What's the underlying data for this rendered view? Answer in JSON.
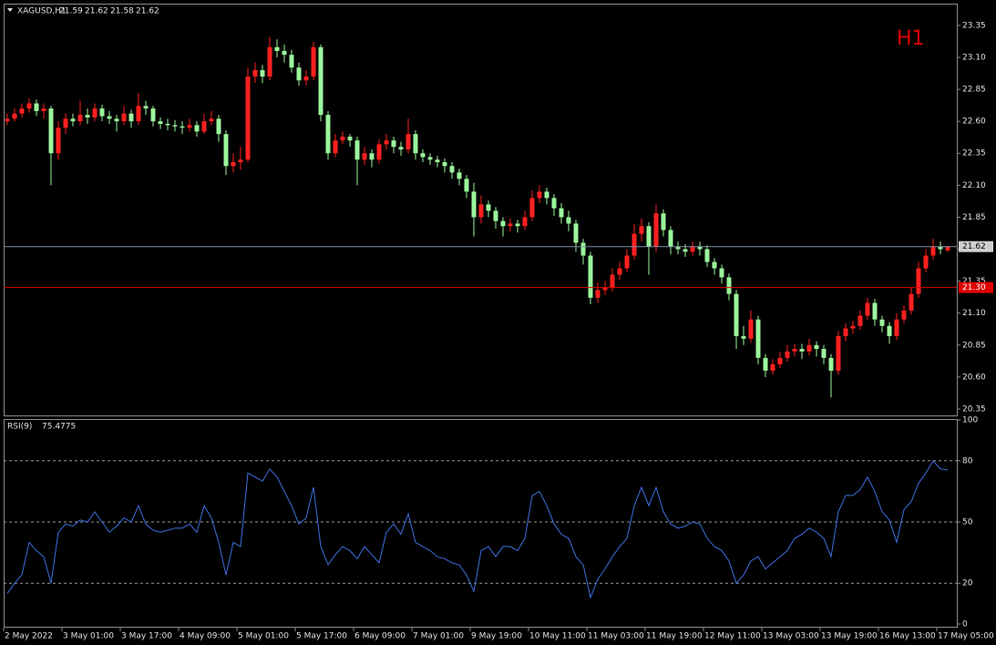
{
  "chart_data": [
    {
      "type": "candlestick",
      "title": "XAGUSD,H1",
      "timeframe_label": "H1",
      "up_color": "#ff2020",
      "down_color": "#9cf59c",
      "ylim": [
        20.3,
        23.52
      ],
      "yticks": [
        {
          "value": 20.35,
          "label": "20.35"
        },
        {
          "value": 20.6,
          "label": "20.60"
        },
        {
          "value": 20.85,
          "label": "20.85"
        },
        {
          "value": 21.1,
          "label": "21.10"
        },
        {
          "value": 21.35,
          "label": "21.35"
        },
        {
          "value": 21.6,
          "label": "21.60"
        },
        {
          "value": 21.85,
          "label": "21.85"
        },
        {
          "value": 22.1,
          "label": "22.10"
        },
        {
          "value": 22.35,
          "label": "22.35"
        },
        {
          "value": 22.6,
          "label": "22.60"
        },
        {
          "value": 22.85,
          "label": "22.85"
        },
        {
          "value": 23.1,
          "label": "23.10"
        },
        {
          "value": 23.35,
          "label": "23.35"
        }
      ],
      "hlines": [
        {
          "value": 21.62,
          "color": "#7f8fa6"
        },
        {
          "value": 21.3,
          "label": "21.30",
          "color": "#e00000"
        }
      ],
      "categories": [
        "2 May 2022",
        null,
        null,
        null,
        null,
        null,
        null,
        null,
        "3 May 01:00",
        null,
        null,
        null,
        null,
        null,
        null,
        null,
        "3 May 17:00",
        null,
        null,
        null,
        null,
        null,
        null,
        null,
        "4 May 09:00",
        null,
        null,
        null,
        null,
        null,
        null,
        null,
        "5 May 01:00",
        null,
        null,
        null,
        null,
        null,
        null,
        null,
        "5 May 17:00",
        null,
        null,
        null,
        null,
        null,
        null,
        null,
        "6 May 09:00",
        null,
        null,
        null,
        null,
        null,
        null,
        null,
        "7 May 01:00",
        null,
        null,
        null,
        null,
        null,
        null,
        null,
        "9 May 19:00",
        null,
        null,
        null,
        null,
        null,
        null,
        null,
        "10 May 11:00",
        null,
        null,
        null,
        null,
        null,
        null,
        null,
        "11 May 03:00",
        null,
        null,
        null,
        null,
        null,
        null,
        null,
        "11 May 19:00",
        null,
        null,
        null,
        null,
        null,
        null,
        null,
        "12 May 11:00",
        null,
        null,
        null,
        null,
        null,
        null,
        null,
        "13 May 03:00",
        null,
        null,
        null,
        null,
        null,
        null,
        null,
        "13 May 19:00",
        null,
        null,
        null,
        null,
        null,
        null,
        null,
        "16 May 13:00",
        null,
        null,
        null,
        null,
        null,
        null,
        null,
        "17 May 05:00",
        null
      ],
      "ohlc": [
        [
          22.6,
          22.66,
          22.57,
          22.62
        ],
        [
          22.62,
          22.7,
          22.6,
          22.66
        ],
        [
          22.66,
          22.74,
          22.63,
          22.7
        ],
        [
          22.7,
          22.78,
          22.67,
          22.74
        ],
        [
          22.74,
          22.77,
          22.64,
          22.68
        ],
        [
          22.68,
          22.74,
          22.62,
          22.7
        ],
        [
          22.7,
          22.72,
          22.1,
          22.35
        ],
        [
          22.35,
          22.6,
          22.3,
          22.55
        ],
        [
          22.55,
          22.66,
          22.5,
          22.62
        ],
        [
          22.62,
          22.66,
          22.56,
          22.6
        ],
        [
          22.6,
          22.76,
          22.57,
          22.65
        ],
        [
          22.65,
          22.7,
          22.58,
          22.63
        ],
        [
          22.63,
          22.74,
          22.6,
          22.7
        ],
        [
          22.7,
          22.73,
          22.6,
          22.64
        ],
        [
          22.64,
          22.68,
          22.58,
          22.62
        ],
        [
          22.62,
          22.65,
          22.52,
          22.6
        ],
        [
          22.6,
          22.72,
          22.57,
          22.66
        ],
        [
          22.66,
          22.69,
          22.55,
          22.6
        ],
        [
          22.6,
          22.82,
          22.57,
          22.72
        ],
        [
          22.72,
          22.76,
          22.65,
          22.7
        ],
        [
          22.7,
          22.72,
          22.56,
          22.6
        ],
        [
          22.6,
          22.63,
          22.54,
          22.58
        ],
        [
          22.58,
          22.62,
          22.53,
          22.57
        ],
        [
          22.57,
          22.61,
          22.52,
          22.56
        ],
        [
          22.56,
          22.6,
          22.5,
          22.55
        ],
        [
          22.55,
          22.62,
          22.52,
          22.57
        ],
        [
          22.57,
          22.6,
          22.48,
          22.52
        ],
        [
          22.52,
          22.66,
          22.5,
          22.6
        ],
        [
          22.6,
          22.68,
          22.57,
          22.62
        ],
        [
          22.62,
          22.65,
          22.44,
          22.5
        ],
        [
          22.5,
          22.53,
          22.18,
          22.25
        ],
        [
          22.25,
          22.35,
          22.2,
          22.28
        ],
        [
          22.28,
          22.4,
          22.22,
          22.3
        ],
        [
          22.3,
          23.02,
          22.28,
          22.95
        ],
        [
          22.95,
          23.06,
          22.9,
          23.0
        ],
        [
          23.0,
          23.04,
          22.9,
          22.95
        ],
        [
          22.95,
          23.26,
          22.92,
          23.18
        ],
        [
          23.18,
          23.24,
          23.1,
          23.15
        ],
        [
          23.15,
          23.2,
          23.06,
          23.12
        ],
        [
          23.12,
          23.16,
          22.98,
          23.02
        ],
        [
          23.02,
          23.06,
          22.88,
          22.92
        ],
        [
          22.92,
          23.0,
          22.88,
          22.95
        ],
        [
          22.95,
          23.22,
          22.92,
          23.18
        ],
        [
          23.18,
          23.2,
          22.6,
          22.65
        ],
        [
          22.65,
          22.68,
          22.3,
          22.35
        ],
        [
          22.35,
          22.5,
          22.32,
          22.45
        ],
        [
          22.45,
          22.52,
          22.42,
          22.48
        ],
        [
          22.48,
          22.5,
          22.4,
          22.45
        ],
        [
          22.45,
          22.48,
          22.1,
          22.3
        ],
        [
          22.3,
          22.4,
          22.26,
          22.35
        ],
        [
          22.35,
          22.38,
          22.24,
          22.3
        ],
        [
          22.3,
          22.46,
          22.27,
          22.42
        ],
        [
          22.42,
          22.5,
          22.38,
          22.45
        ],
        [
          22.45,
          22.48,
          22.35,
          22.4
        ],
        [
          22.4,
          22.44,
          22.33,
          22.38
        ],
        [
          22.38,
          22.62,
          22.35,
          22.5
        ],
        [
          22.5,
          22.53,
          22.3,
          22.35
        ],
        [
          22.35,
          22.38,
          22.28,
          22.32
        ],
        [
          22.32,
          22.35,
          22.26,
          22.3
        ],
        [
          22.3,
          22.33,
          22.24,
          22.28
        ],
        [
          22.28,
          22.31,
          22.2,
          22.25
        ],
        [
          22.25,
          22.28,
          22.15,
          22.2
        ],
        [
          22.2,
          22.23,
          22.1,
          22.15
        ],
        [
          22.15,
          22.18,
          22.0,
          22.05
        ],
        [
          22.05,
          22.12,
          21.7,
          21.85
        ],
        [
          21.85,
          22.02,
          21.8,
          21.95
        ],
        [
          21.95,
          21.98,
          21.85,
          21.9
        ],
        [
          21.9,
          21.93,
          21.76,
          21.82
        ],
        [
          21.82,
          21.85,
          21.7,
          21.78
        ],
        [
          21.78,
          21.84,
          21.74,
          21.8
        ],
        [
          21.8,
          21.83,
          21.73,
          21.78
        ],
        [
          21.78,
          21.9,
          21.75,
          21.85
        ],
        [
          21.85,
          22.06,
          21.82,
          22.0
        ],
        [
          22.0,
          22.1,
          21.96,
          22.05
        ],
        [
          22.05,
          22.08,
          21.95,
          22.0
        ],
        [
          22.0,
          22.03,
          21.86,
          21.92
        ],
        [
          21.92,
          21.96,
          21.8,
          21.85
        ],
        [
          21.85,
          21.9,
          21.74,
          21.8
        ],
        [
          21.8,
          21.83,
          21.58,
          21.65
        ],
        [
          21.65,
          21.68,
          21.48,
          21.55
        ],
        [
          21.55,
          21.58,
          21.17,
          21.22
        ],
        [
          21.22,
          21.34,
          21.18,
          21.28
        ],
        [
          21.28,
          21.35,
          21.24,
          21.3
        ],
        [
          21.3,
          21.45,
          21.27,
          21.4
        ],
        [
          21.4,
          21.5,
          21.36,
          21.45
        ],
        [
          21.45,
          21.6,
          21.42,
          21.55
        ],
        [
          21.55,
          21.8,
          21.52,
          21.72
        ],
        [
          21.72,
          21.84,
          21.66,
          21.78
        ],
        [
          21.78,
          21.81,
          21.4,
          21.62
        ],
        [
          21.62,
          21.95,
          21.58,
          21.88
        ],
        [
          21.88,
          21.91,
          21.7,
          21.75
        ],
        [
          21.75,
          21.78,
          21.56,
          21.62
        ],
        [
          21.62,
          21.66,
          21.56,
          21.6
        ],
        [
          21.6,
          21.64,
          21.54,
          21.58
        ],
        [
          21.58,
          21.66,
          21.55,
          21.62
        ],
        [
          21.62,
          21.66,
          21.55,
          21.6
        ],
        [
          21.6,
          21.63,
          21.46,
          21.5
        ],
        [
          21.5,
          21.53,
          21.4,
          21.45
        ],
        [
          21.45,
          21.48,
          21.33,
          21.38
        ],
        [
          21.38,
          21.41,
          21.2,
          21.25
        ],
        [
          21.25,
          21.28,
          20.82,
          20.92
        ],
        [
          20.92,
          21.0,
          20.85,
          20.9
        ],
        [
          20.9,
          21.12,
          20.87,
          21.05
        ],
        [
          21.05,
          21.08,
          20.7,
          20.75
        ],
        [
          20.75,
          20.78,
          20.6,
          20.65
        ],
        [
          20.65,
          20.74,
          20.62,
          20.7
        ],
        [
          20.7,
          20.8,
          20.67,
          20.75
        ],
        [
          20.75,
          20.85,
          20.72,
          20.8
        ],
        [
          20.8,
          20.86,
          20.76,
          20.82
        ],
        [
          20.82,
          20.86,
          20.74,
          20.8
        ],
        [
          20.8,
          20.9,
          20.77,
          20.85
        ],
        [
          20.85,
          20.88,
          20.76,
          20.82
        ],
        [
          20.82,
          20.85,
          20.7,
          20.75
        ],
        [
          20.75,
          20.78,
          20.44,
          20.65
        ],
        [
          20.65,
          20.96,
          20.62,
          20.92
        ],
        [
          20.92,
          21.02,
          20.88,
          20.98
        ],
        [
          20.98,
          21.04,
          20.94,
          21.0
        ],
        [
          21.0,
          21.12,
          20.97,
          21.08
        ],
        [
          21.08,
          21.22,
          21.05,
          21.18
        ],
        [
          21.18,
          21.21,
          21.0,
          21.05
        ],
        [
          21.05,
          21.08,
          20.95,
          21.0
        ],
        [
          21.0,
          21.03,
          20.86,
          20.92
        ],
        [
          20.92,
          21.1,
          20.89,
          21.05
        ],
        [
          21.05,
          21.16,
          21.02,
          21.12
        ],
        [
          21.12,
          21.3,
          21.09,
          21.25
        ],
        [
          21.25,
          21.5,
          21.22,
          21.45
        ],
        [
          21.45,
          21.6,
          21.42,
          21.55
        ],
        [
          21.55,
          21.68,
          21.52,
          21.62
        ],
        [
          21.62,
          21.66,
          21.56,
          21.6
        ],
        [
          21.59,
          21.62,
          21.58,
          21.62
        ]
      ]
    },
    {
      "type": "line",
      "title": "RSI(9)",
      "color": "#3f6fe0",
      "ylim": [
        0,
        100
      ],
      "yticks": [
        100,
        80,
        50,
        20,
        0
      ],
      "levels": [
        80,
        50,
        20
      ],
      "values": [
        15,
        20,
        24,
        40,
        36,
        33,
        20,
        45,
        49,
        48,
        51,
        50,
        55,
        50,
        45,
        48,
        52,
        50,
        58,
        49,
        46,
        45,
        46,
        47,
        47,
        49,
        45,
        58,
        52,
        40,
        24,
        40,
        38,
        74,
        72,
        70,
        76,
        72,
        65,
        58,
        49,
        52,
        67,
        38,
        29,
        34,
        38,
        36,
        32,
        38,
        34,
        30,
        45,
        49,
        44,
        54,
        40,
        38,
        36,
        33,
        32,
        30,
        29,
        24,
        16,
        36,
        38,
        33,
        38,
        38,
        36,
        42,
        63,
        65,
        58,
        49,
        44,
        42,
        33,
        29,
        13,
        22,
        27,
        33,
        38,
        42,
        58,
        67,
        58,
        67,
        55,
        49,
        47,
        48,
        50,
        49,
        42,
        38,
        36,
        31,
        20,
        24,
        31,
        33,
        27,
        30,
        33,
        36,
        42,
        44,
        47,
        45,
        42,
        33,
        55,
        63,
        63,
        66,
        72,
        65,
        55,
        51,
        40,
        56,
        60,
        69,
        74,
        80,
        76,
        75.4775
      ]
    }
  ]
}
